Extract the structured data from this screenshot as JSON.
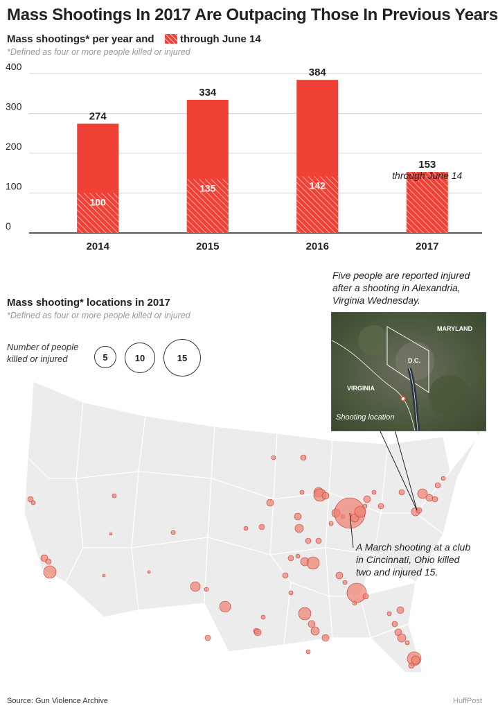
{
  "title": "Mass Shootings In 2017 Are Outpacing Those In Previous Years",
  "bar_section": {
    "subtitle_prefix": "Mass shootings* per year and",
    "legend_label": "through June 14",
    "footnote": "*Defined as four or more people killed or injured",
    "annotation_2017": "through June 14"
  },
  "map_section": {
    "subtitle": "Mass shooting* locations in 2017",
    "footnote": "*Defined as four or more people killed or injured",
    "size_legend_line1": "Number of people",
    "size_legend_line2": "killed or injured",
    "size_legend_values": [
      "5",
      "10",
      "15"
    ],
    "inset_caption_lines": [
      "Five people are reported injured",
      "after a shooting in Alexandria,",
      "Virginia Wednesday."
    ],
    "inset_labels": {
      "maryland": "MARYLAND",
      "dc": "D.C.",
      "virginia": "VIRGINIA",
      "shooting": "Shooting location"
    },
    "cincinnati_callout_lines": [
      "A March shooting at a club",
      "in Cincinnati, Ohio killed",
      "two and injured 15."
    ]
  },
  "colors": {
    "bar": "#ef4136",
    "hatch": "#ffffff",
    "dot_fill": "#f08070",
    "dot_stroke": "#c0392b",
    "state_fill": "#ececec",
    "state_stroke": "#ffffff"
  },
  "source": "Source: Gun Violence Archive",
  "credit": "HuffPost",
  "chart_data": {
    "type": "bar",
    "categories": [
      "2014",
      "2015",
      "2016",
      "2017"
    ],
    "series": [
      {
        "name": "Mass shootings per year",
        "values": [
          274,
          334,
          384,
          153
        ]
      },
      {
        "name": "through June 14",
        "values": [
          100,
          135,
          142,
          153
        ]
      }
    ],
    "ylim": [
      0,
      400
    ],
    "yticks": [
      0,
      100,
      200,
      300,
      400
    ],
    "grid": true,
    "legend": "top"
  }
}
